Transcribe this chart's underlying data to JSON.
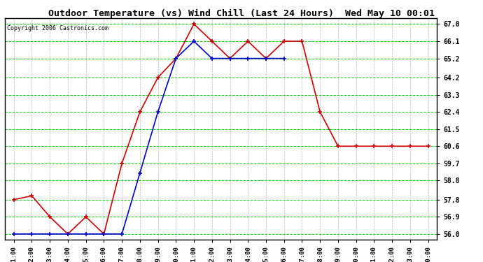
{
  "title": "Outdoor Temperature (vs) Wind Chill (Last 24 Hours)  Wed May 10 00:01",
  "copyright": "Copyright 2006 Castronics.com",
  "x_labels": [
    "01:00",
    "02:00",
    "03:00",
    "04:00",
    "05:00",
    "06:00",
    "07:00",
    "08:00",
    "09:00",
    "10:00",
    "11:00",
    "12:00",
    "13:00",
    "14:00",
    "15:00",
    "16:00",
    "17:00",
    "18:00",
    "19:00",
    "20:00",
    "21:00",
    "22:00",
    "23:00",
    "00:00"
  ],
  "temp_data": [
    57.8,
    58.0,
    56.9,
    56.0,
    56.9,
    56.0,
    59.7,
    62.4,
    64.2,
    65.2,
    67.0,
    66.1,
    65.2,
    66.1,
    65.2,
    66.1,
    66.1,
    62.4,
    60.6,
    60.6,
    60.6,
    60.6,
    60.6,
    60.6
  ],
  "windchill_data": [
    56.0,
    56.0,
    56.0,
    56.0,
    56.0,
    56.0,
    56.0,
    59.2,
    62.4,
    65.2,
    66.1,
    65.2,
    65.2,
    65.2,
    65.2,
    65.2,
    null,
    null,
    null,
    null,
    null,
    null,
    null,
    null
  ],
  "temp_color": "#cc0000",
  "windchill_color": "#0000cc",
  "bg_color": "#ffffff",
  "plot_bg_color": "#ffffff",
  "hgrid_color": "#00cc00",
  "vgrid_color": "#999999",
  "ymin": 56.0,
  "ymax": 67.0,
  "yticks": [
    56.0,
    56.9,
    57.8,
    58.8,
    59.7,
    60.6,
    61.5,
    62.4,
    63.3,
    64.2,
    65.2,
    66.1,
    67.0
  ]
}
